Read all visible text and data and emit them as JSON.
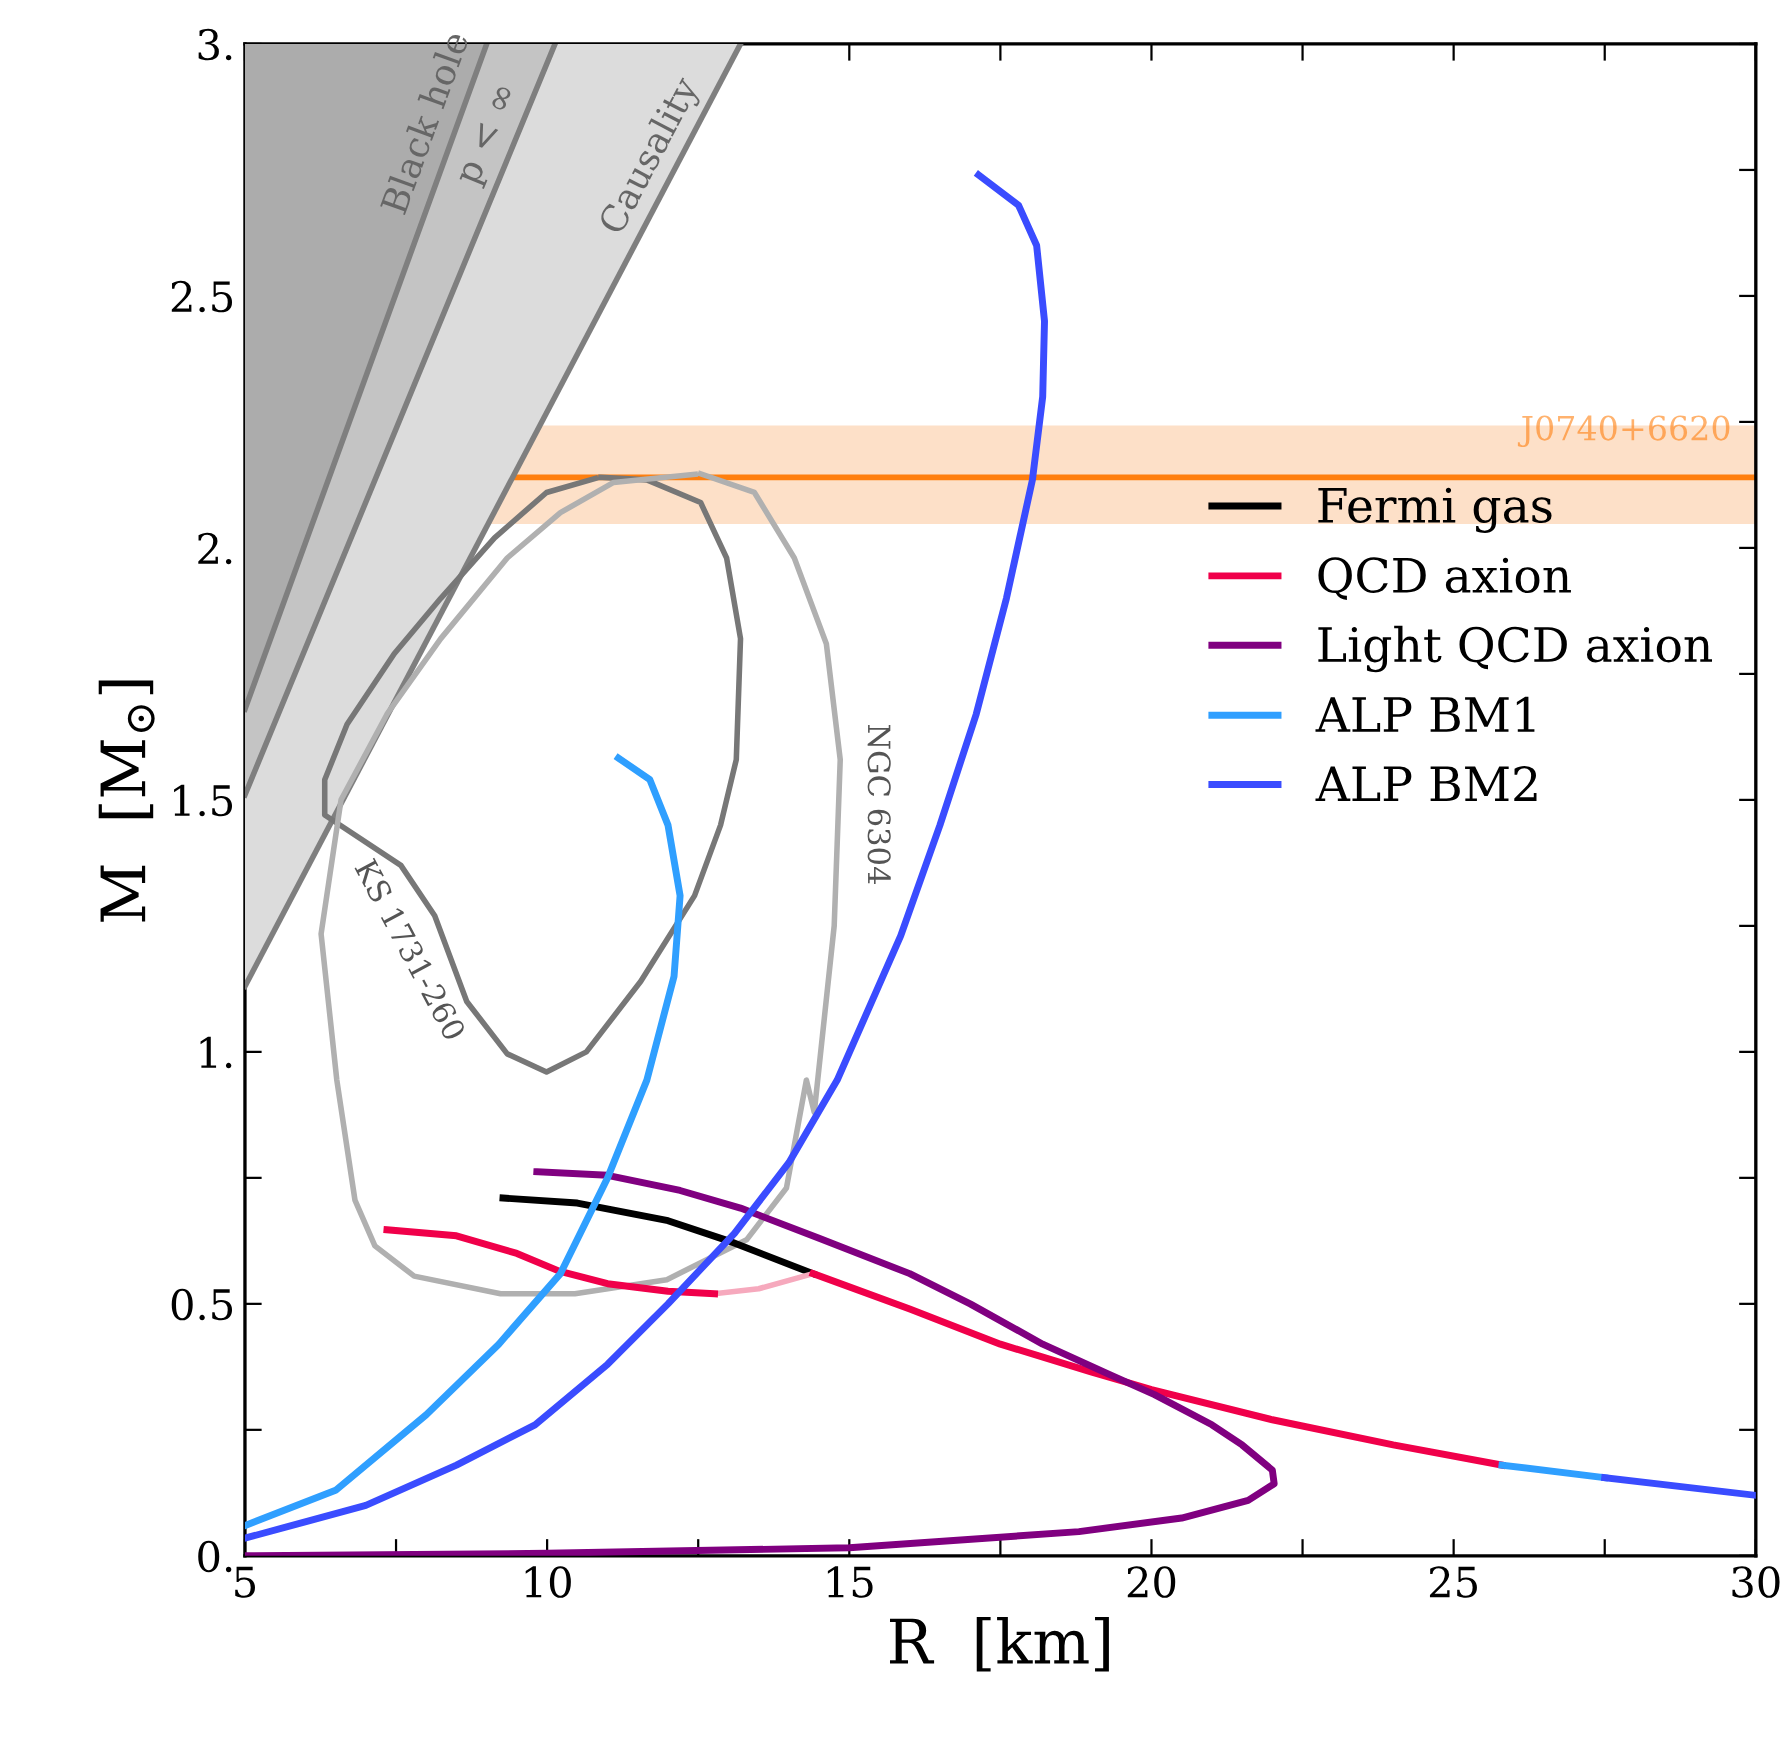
{
  "chart_data": {
    "type": "line",
    "xlabel": "R  [km]",
    "ylabel": "M  [M$_{⊙}$]",
    "xlim": [
      5,
      30
    ],
    "ylim": [
      0,
      3
    ],
    "xticks": [
      5,
      {
        "value": 7.5,
        "label": null
      },
      10,
      {
        "value": 12.5,
        "label": null
      },
      15,
      {
        "value": 17.5,
        "label": null
      },
      20,
      {
        "value": 22.5,
        "label": null
      },
      25,
      {
        "value": 27.5,
        "label": null
      },
      30
    ],
    "yticks": [
      {
        "value": 0,
        "label": "0."
      },
      {
        "value": 0.25,
        "label": null
      },
      0.5,
      {
        "value": 0.75,
        "label": null
      },
      {
        "value": 1,
        "label": "1."
      },
      {
        "value": 1.25,
        "label": null
      },
      1.5,
      {
        "value": 1.75,
        "label": null
      },
      {
        "value": 2,
        "label": "2."
      },
      {
        "value": 2.25,
        "label": null
      },
      2.5,
      {
        "value": 2.75,
        "label": null
      },
      {
        "value": 3,
        "label": "3."
      }
    ],
    "grid": false,
    "legend": "right",
    "marker": "none",
    "line_style": "solid",
    "bands": [
      {
        "axis": "y",
        "from": 2.05,
        "to": 2.24,
        "color": "#fde0c8"
      }
    ],
    "ref_lines": [
      {
        "axis": "y",
        "value": 2.14,
        "label": "J0740+6620",
        "color": "#ff7f0e"
      }
    ],
    "annotations": [
      "KS 1731-260",
      "NGC 6304"
    ],
    "series": [
      {
        "type": "area",
        "name": "Causality",
        "color": "#dcdcdc",
        "x": [
          5,
          13.2
        ],
        "values": [
          1.13,
          3
        ]
      },
      {
        "type": "area",
        "name": "p < ∞",
        "color": "#c4c4c4",
        "x": [
          5,
          10.13
        ],
        "values": [
          1.51,
          3
        ]
      },
      {
        "type": "area",
        "name": "Black hole",
        "color": "#acacac",
        "x": [
          5,
          9.0
        ],
        "values": [
          1.68,
          3
        ]
      },
      {
        "color": "#777777",
        "x": [
          10.89,
          11.65,
          12.54,
          12.97,
          13.2,
          13.13,
          12.87,
          12.44,
          11.55,
          10.65,
          9.99,
          9.34,
          8.67,
          8.14,
          7.58,
          6.32,
          6.32,
          6.69,
          7.47,
          8.24,
          9.13,
          9.99,
          10.8
        ],
        "values": [
          2.14,
          2.135,
          2.09,
          1.98,
          1.82,
          1.58,
          1.45,
          1.31,
          1.14,
          1.0,
          0.96,
          0.996,
          1.1,
          1.27,
          1.37,
          1.47,
          1.54,
          1.65,
          1.79,
          1.9,
          2.02,
          2.11,
          2.138
        ]
      },
      {
        "color": "#b0b0b0",
        "x": [
          12.54,
          13.43,
          14.09,
          14.62,
          14.85,
          14.75,
          14.42,
          14.29,
          13.96,
          13.3,
          11.98,
          10.46,
          9.23,
          7.8,
          7.15,
          6.82,
          6.52,
          6.26,
          6.59,
          7.35,
          8.24,
          9.34,
          10.22,
          11.1,
          12.45
        ],
        "values": [
          2.147,
          2.11,
          1.98,
          1.81,
          1.58,
          1.25,
          0.88,
          0.944,
          0.73,
          0.627,
          0.548,
          0.52,
          0.52,
          0.555,
          0.615,
          0.706,
          0.944,
          1.234,
          1.5,
          1.67,
          1.82,
          1.98,
          2.07,
          2.13,
          2.146
        ]
      },
      {
        "name": "Fermi gas",
        "color": "#000000",
        "x": [
          9.27,
          10.5,
          12,
          13,
          14.4
        ],
        "values": [
          0.71,
          0.7,
          0.665,
          0.625,
          0.56
        ]
      },
      {
        "color": "#f6a9bd",
        "x": [
          12.77,
          13.5,
          14.4
        ],
        "values": [
          0.52,
          0.53,
          0.56
        ]
      },
      {
        "name": "QCD axion",
        "color": "#f0004a",
        "x": [
          7.35,
          8.5,
          9.5,
          10.2,
          11,
          12,
          12.77,
          null,
          14.4,
          16,
          17.5,
          19,
          20,
          22,
          24,
          25.8
        ],
        "values": [
          0.647,
          0.635,
          0.6,
          0.565,
          0.54,
          0.525,
          0.52,
          null,
          0.56,
          0.49,
          0.42,
          0.365,
          0.33,
          0.27,
          0.22,
          0.18
        ]
      },
      {
        "name": "Light QCD axion",
        "color": "#800080",
        "x": [
          9.83,
          11,
          12.2,
          13.2,
          14.5,
          16,
          17,
          18.2,
          19.3,
          20.05,
          21,
          21.5,
          22,
          22.03,
          21.6,
          20.5,
          18.8,
          15,
          10,
          5
        ],
        "values": [
          0.762,
          0.755,
          0.725,
          0.69,
          0.63,
          0.56,
          0.5,
          0.42,
          0.36,
          0.32,
          0.26,
          0.22,
          0.17,
          0.143,
          0.11,
          0.075,
          0.048,
          0.016,
          0.005,
          0.0
        ]
      },
      {
        "name": "ALP BM1",
        "color": "#2f9fff",
        "x": [
          5,
          6.5,
          8.0,
          9.2,
          10.22,
          11.0,
          11.65,
          12.1,
          12.2,
          12.0,
          11.7,
          11.18,
          null,
          25.8,
          27.5
        ],
        "values": [
          0.06,
          0.13,
          0.28,
          0.42,
          0.56,
          0.75,
          0.944,
          1.15,
          1.31,
          1.45,
          1.54,
          1.583,
          null,
          0.18,
          0.155
        ]
      },
      {
        "name": "ALP BM2",
        "color": "#3a4cff",
        "x": [
          5,
          7,
          8.5,
          9.8,
          11,
          12,
          13.1,
          14,
          14.8,
          15.85,
          16.5,
          17.1,
          17.6,
          18.03,
          18.2,
          18.23,
          18.1,
          17.8,
          17.14,
          null,
          27.5,
          30
        ],
        "values": [
          0.035,
          0.1,
          0.18,
          0.26,
          0.38,
          0.5,
          0.64,
          0.78,
          0.944,
          1.23,
          1.45,
          1.67,
          1.9,
          2.135,
          2.3,
          2.45,
          2.6,
          2.68,
          2.74,
          null,
          0.155,
          0.12
        ]
      }
    ]
  }
}
